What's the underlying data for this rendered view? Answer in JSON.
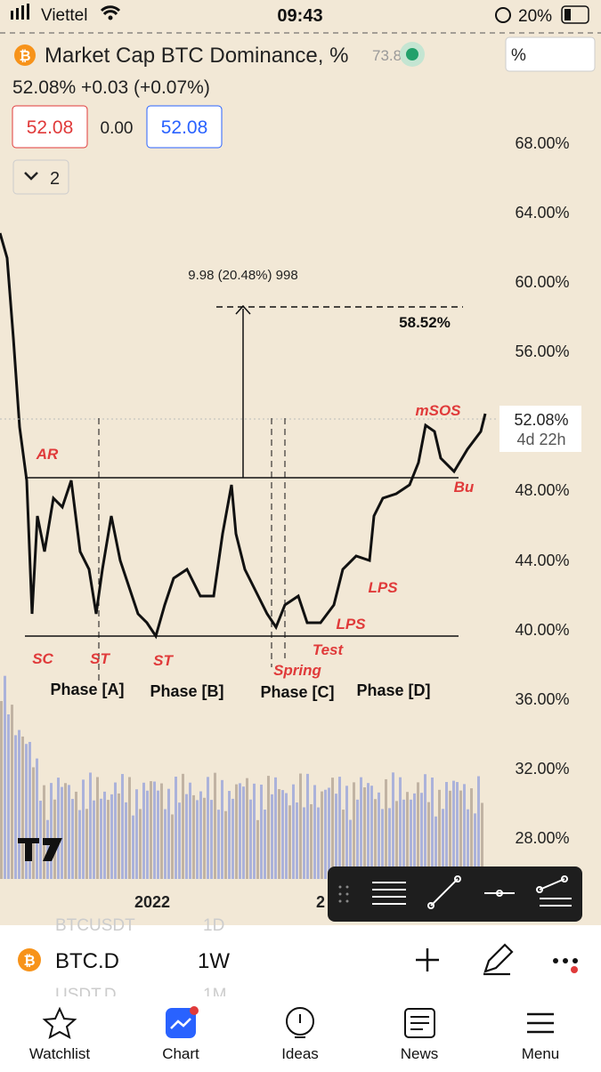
{
  "status_bar": {
    "carrier": "Viettel",
    "time": "09:43",
    "battery": "20%"
  },
  "header": {
    "title": "Market Cap BTC Dominance, %",
    "hidden_value": "73.8",
    "quote": "52.08%  +0.03 (+0.07%)",
    "bid": "52.08",
    "spread": "0.00",
    "ask": "52.08",
    "indicators": "2",
    "unit": "%"
  },
  "chart": {
    "yticks": [
      "68.00%",
      "64.00%",
      "60.00%",
      "56.00%",
      "48.00%",
      "44.00%",
      "40.00%",
      "36.00%",
      "32.00%",
      "28.00%"
    ],
    "price_label": "52.08%",
    "countdown": "4d 22h",
    "measure": "9.98 (20.48%) 998",
    "target": "58.52%",
    "annotations": [
      "mSOS",
      "AR",
      "Bu",
      "LPS",
      "LPS",
      "Test",
      "SC",
      "ST",
      "ST",
      "Spring"
    ],
    "phases": [
      "Phase [A]",
      "Phase [B]",
      "Phase [C]",
      "Phase [D]"
    ],
    "xlabels": [
      "2022",
      "2"
    ]
  },
  "symbol_bar": {
    "symbol": "BTC.D",
    "interval": "1W",
    "behind": [
      "BTCUSDT",
      "1D",
      "USDT.D",
      "1M"
    ]
  },
  "nav": [
    "Watchlist",
    "Chart",
    "Ideas",
    "News",
    "Menu"
  ]
}
